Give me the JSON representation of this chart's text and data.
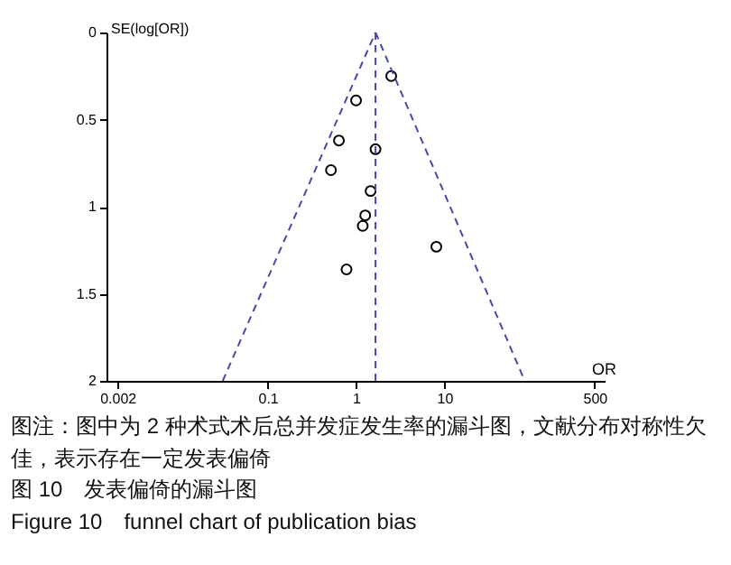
{
  "chart_data": {
    "type": "scatter",
    "xlabel": "OR",
    "ylabel": "SE(log[OR])",
    "log": "x",
    "xlim": [
      0.0015,
      650
    ],
    "xticks": [
      0.002,
      0.1,
      1,
      10,
      500
    ],
    "ylim": [
      2,
      0
    ],
    "yticks": [
      0,
      0.5,
      1,
      1.5,
      2
    ],
    "grid": false,
    "x": [
      2.5,
      1.0,
      0.64,
      1.66,
      0.52,
      1.46,
      1.27,
      1.19,
      8.1,
      0.78
    ],
    "series": [
      {
        "marker": "circle",
        "color": "#000000",
        "values": [
          0.25,
          0.39,
          0.62,
          0.67,
          0.79,
          0.91,
          1.05,
          1.11,
          1.23,
          1.36
        ]
      },
      {
        "type": "line",
        "line_style": "dashed",
        "color": "#4848a8",
        "x": [
          1.66,
          0.031
        ],
        "values": [
          0,
          2
        ]
      },
      {
        "type": "line",
        "line_style": "dashed",
        "color": "#4848a8",
        "x": [
          1.66,
          81
        ],
        "values": [
          0,
          2
        ]
      },
      {
        "type": "line",
        "line_style": "dashed",
        "color": "#4848a8",
        "x": [
          1.66,
          1.66
        ],
        "values": [
          0,
          2
        ]
      }
    ],
    "annotations": [
      "图注：图中为 2 种术式术后总并发症发生率的漏斗图，文献分布对称性欠佳，表示存在一定发表偏倚",
      "图 10　发表偏倚的漏斗图",
      "Figure 10　funnel chart of publication bias"
    ]
  }
}
